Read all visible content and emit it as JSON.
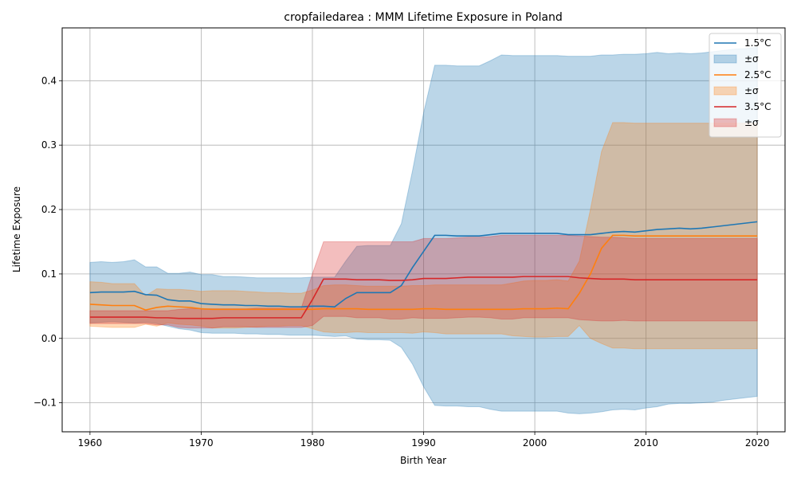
{
  "chart_data": {
    "type": "line",
    "title": "cropfailedarea : MMM Lifetime Exposure in Poland",
    "xlabel": "Birth Year",
    "ylabel": "Lifetime Exposure",
    "xlim": [
      1957.5,
      2022.5
    ],
    "ylim": [
      -0.145,
      0.482
    ],
    "xticks": [
      1960,
      1970,
      1980,
      1990,
      2000,
      2010,
      2020
    ],
    "xtick_labels": [
      "1960",
      "1970",
      "1980",
      "1990",
      "2000",
      "2010",
      "2020"
    ],
    "yticks": [
      -0.1,
      0.0,
      0.1,
      0.2,
      0.3,
      0.4
    ],
    "ytick_labels": [
      "−0.1",
      "0.0",
      "0.1",
      "0.2",
      "0.3",
      "0.4"
    ],
    "grid": true,
    "legend_position": "top-right",
    "x": [
      1960,
      1961,
      1962,
      1963,
      1964,
      1965,
      1966,
      1967,
      1968,
      1969,
      1970,
      1971,
      1972,
      1973,
      1974,
      1975,
      1976,
      1977,
      1978,
      1979,
      1980,
      1981,
      1982,
      1983,
      1984,
      1985,
      1986,
      1987,
      1988,
      1989,
      1990,
      1991,
      1992,
      1993,
      1994,
      1995,
      1996,
      1997,
      1998,
      1999,
      2000,
      2001,
      2002,
      2003,
      2004,
      2005,
      2006,
      2007,
      2008,
      2009,
      2010,
      2011,
      2012,
      2013,
      2014,
      2015,
      2016,
      2017,
      2018,
      2019,
      2020
    ],
    "series": [
      {
        "name": "1.5°C",
        "band_name": "±σ",
        "color": "#1f77b4",
        "mean": [
          0.071,
          0.072,
          0.072,
          0.072,
          0.073,
          0.068,
          0.067,
          0.06,
          0.058,
          0.058,
          0.054,
          0.053,
          0.052,
          0.052,
          0.051,
          0.051,
          0.05,
          0.05,
          0.049,
          0.049,
          0.05,
          0.05,
          0.049,
          0.062,
          0.071,
          0.071,
          0.071,
          0.071,
          0.082,
          0.11,
          0.135,
          0.16,
          0.16,
          0.159,
          0.159,
          0.159,
          0.161,
          0.163,
          0.163,
          0.163,
          0.163,
          0.163,
          0.163,
          0.161,
          0.161,
          0.161,
          0.163,
          0.165,
          0.166,
          0.165,
          0.167,
          0.169,
          0.17,
          0.171,
          0.17,
          0.171,
          0.173,
          0.175,
          0.177,
          0.179,
          0.181
        ],
        "upper": [
          0.118,
          0.119,
          0.118,
          0.119,
          0.122,
          0.111,
          0.111,
          0.101,
          0.101,
          0.103,
          0.099,
          0.099,
          0.096,
          0.096,
          0.095,
          0.094,
          0.094,
          0.094,
          0.094,
          0.094,
          0.095,
          0.095,
          0.095,
          0.12,
          0.143,
          0.144,
          0.144,
          0.144,
          0.178,
          0.26,
          0.35,
          0.424,
          0.424,
          0.423,
          0.423,
          0.423,
          0.431,
          0.44,
          0.439,
          0.439,
          0.439,
          0.439,
          0.439,
          0.438,
          0.438,
          0.438,
          0.44,
          0.44,
          0.441,
          0.441,
          0.442,
          0.444,
          0.442,
          0.443,
          0.442,
          0.443,
          0.445,
          0.447,
          0.449,
          0.45,
          0.452
        ],
        "lower": [
          0.024,
          0.025,
          0.026,
          0.025,
          0.024,
          0.025,
          0.023,
          0.019,
          0.015,
          0.013,
          0.009,
          0.008,
          0.008,
          0.008,
          0.007,
          0.007,
          0.006,
          0.006,
          0.005,
          0.005,
          0.005,
          0.004,
          0.003,
          0.004,
          -0.001,
          -0.002,
          -0.002,
          -0.003,
          -0.014,
          -0.04,
          -0.075,
          -0.104,
          -0.105,
          -0.105,
          -0.106,
          -0.106,
          -0.11,
          -0.113,
          -0.113,
          -0.113,
          -0.113,
          -0.113,
          -0.113,
          -0.116,
          -0.117,
          -0.116,
          -0.114,
          -0.111,
          -0.11,
          -0.111,
          -0.108,
          -0.106,
          -0.102,
          -0.101,
          -0.101,
          -0.1,
          -0.099,
          -0.096,
          -0.094,
          -0.092,
          -0.09
        ]
      },
      {
        "name": "2.5°C",
        "band_name": "±σ",
        "color": "#ff7f0e",
        "mean": [
          0.053,
          0.052,
          0.051,
          0.051,
          0.051,
          0.044,
          0.048,
          0.05,
          0.049,
          0.048,
          0.046,
          0.045,
          0.045,
          0.045,
          0.045,
          0.045,
          0.045,
          0.045,
          0.045,
          0.045,
          0.045,
          0.046,
          0.046,
          0.046,
          0.046,
          0.045,
          0.045,
          0.045,
          0.045,
          0.045,
          0.046,
          0.046,
          0.045,
          0.045,
          0.045,
          0.045,
          0.045,
          0.045,
          0.045,
          0.046,
          0.046,
          0.046,
          0.047,
          0.046,
          0.07,
          0.1,
          0.14,
          0.16,
          0.16,
          0.159,
          0.159,
          0.159,
          0.159,
          0.159,
          0.159,
          0.159,
          0.159,
          0.159,
          0.159,
          0.159,
          0.159
        ],
        "upper": [
          0.088,
          0.087,
          0.085,
          0.085,
          0.085,
          0.066,
          0.077,
          0.076,
          0.076,
          0.075,
          0.073,
          0.074,
          0.074,
          0.074,
          0.073,
          0.072,
          0.071,
          0.071,
          0.07,
          0.07,
          0.075,
          0.082,
          0.083,
          0.083,
          0.082,
          0.081,
          0.081,
          0.081,
          0.081,
          0.082,
          0.082,
          0.083,
          0.083,
          0.083,
          0.083,
          0.083,
          0.083,
          0.083,
          0.086,
          0.089,
          0.09,
          0.09,
          0.091,
          0.089,
          0.12,
          0.2,
          0.29,
          0.335,
          0.335,
          0.334,
          0.334,
          0.334,
          0.334,
          0.334,
          0.334,
          0.334,
          0.334,
          0.334,
          0.334,
          0.334,
          0.334
        ],
        "lower": [
          0.019,
          0.018,
          0.017,
          0.017,
          0.017,
          0.022,
          0.019,
          0.024,
          0.022,
          0.021,
          0.019,
          0.016,
          0.016,
          0.016,
          0.017,
          0.018,
          0.019,
          0.019,
          0.02,
          0.02,
          0.015,
          0.01,
          0.009,
          0.009,
          0.01,
          0.009,
          0.009,
          0.009,
          0.009,
          0.008,
          0.01,
          0.009,
          0.007,
          0.007,
          0.007,
          0.007,
          0.007,
          0.007,
          0.004,
          0.003,
          0.002,
          0.002,
          0.003,
          0.003,
          0.02,
          0.0,
          -0.008,
          -0.015,
          -0.015,
          -0.016,
          -0.016,
          -0.016,
          -0.016,
          -0.016,
          -0.016,
          -0.016,
          -0.016,
          -0.016,
          -0.016,
          -0.016,
          -0.016
        ]
      },
      {
        "name": "3.5°C",
        "band_name": "±σ",
        "color": "#d62728",
        "mean": [
          0.033,
          0.033,
          0.033,
          0.033,
          0.033,
          0.033,
          0.032,
          0.032,
          0.031,
          0.031,
          0.031,
          0.031,
          0.032,
          0.032,
          0.032,
          0.032,
          0.032,
          0.032,
          0.032,
          0.032,
          0.06,
          0.092,
          0.092,
          0.092,
          0.091,
          0.091,
          0.091,
          0.09,
          0.09,
          0.091,
          0.093,
          0.093,
          0.093,
          0.094,
          0.095,
          0.095,
          0.095,
          0.095,
          0.095,
          0.096,
          0.096,
          0.096,
          0.096,
          0.096,
          0.094,
          0.093,
          0.092,
          0.092,
          0.092,
          0.091,
          0.091,
          0.091,
          0.091,
          0.091,
          0.091,
          0.091,
          0.091,
          0.091,
          0.091,
          0.091,
          0.091
        ],
        "upper": [
          0.043,
          0.043,
          0.043,
          0.043,
          0.043,
          0.043,
          0.043,
          0.043,
          0.045,
          0.046,
          0.046,
          0.046,
          0.046,
          0.046,
          0.046,
          0.047,
          0.047,
          0.047,
          0.047,
          0.047,
          0.1,
          0.15,
          0.15,
          0.15,
          0.15,
          0.15,
          0.15,
          0.15,
          0.15,
          0.15,
          0.155,
          0.155,
          0.155,
          0.156,
          0.157,
          0.157,
          0.158,
          0.16,
          0.16,
          0.16,
          0.16,
          0.16,
          0.16,
          0.16,
          0.159,
          0.158,
          0.157,
          0.157,
          0.156,
          0.155,
          0.155,
          0.155,
          0.155,
          0.155,
          0.155,
          0.155,
          0.155,
          0.155,
          0.155,
          0.155,
          0.155
        ],
        "lower": [
          0.023,
          0.023,
          0.023,
          0.023,
          0.023,
          0.023,
          0.021,
          0.021,
          0.017,
          0.016,
          0.016,
          0.016,
          0.018,
          0.018,
          0.018,
          0.017,
          0.017,
          0.017,
          0.017,
          0.017,
          0.02,
          0.034,
          0.034,
          0.034,
          0.032,
          0.032,
          0.032,
          0.03,
          0.03,
          0.032,
          0.031,
          0.031,
          0.031,
          0.032,
          0.033,
          0.033,
          0.032,
          0.03,
          0.03,
          0.032,
          0.032,
          0.032,
          0.032,
          0.032,
          0.029,
          0.028,
          0.027,
          0.027,
          0.028,
          0.027,
          0.027,
          0.027,
          0.027,
          0.027,
          0.027,
          0.027,
          0.027,
          0.027,
          0.027,
          0.027,
          0.027
        ]
      }
    ]
  }
}
